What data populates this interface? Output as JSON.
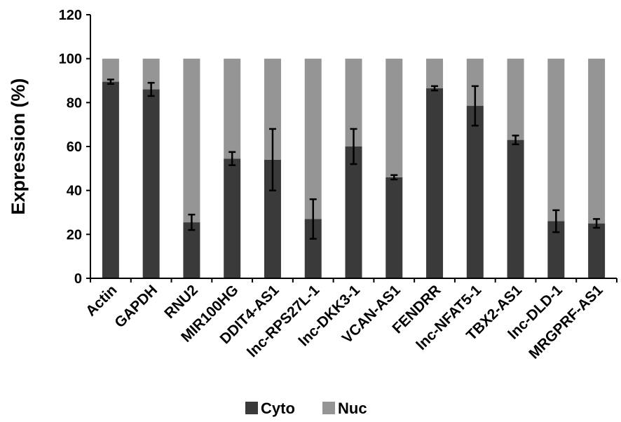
{
  "chart_data": {
    "type": "bar",
    "stacked": true,
    "title": "",
    "xlabel": "",
    "ylabel": "Expression (%)",
    "ylim": [
      0,
      120
    ],
    "yticks": [
      0,
      20,
      40,
      60,
      80,
      100,
      120
    ],
    "categories": [
      "Actin",
      "GAPDH",
      "RNU2",
      "MIR100HG",
      "DDIT4-AS1",
      "lnc-RPS27L-1",
      "lnc-DKK3-1",
      "VCAN-AS1",
      "FENDRR",
      "lnc-NFAT5-1",
      "TBX2-AS1",
      "lnc-DLD-1",
      "MRGPRF-AS1"
    ],
    "series": [
      {
        "name": "Cyto",
        "color": "#3a3a3a",
        "values": [
          89.5,
          86,
          25.5,
          54.5,
          54,
          27,
          60,
          46,
          86.5,
          78.5,
          63,
          26,
          25
        ],
        "error": [
          1,
          3,
          3.5,
          3,
          14,
          9,
          8,
          1,
          1,
          9,
          2,
          5,
          2
        ]
      },
      {
        "name": "Nuc",
        "color": "#959595",
        "values": [
          10.5,
          14,
          74.5,
          45.5,
          46,
          73,
          40,
          54,
          13.5,
          21.5,
          37,
          74,
          75
        ]
      }
    ],
    "legend_position": "bottom",
    "grid": false
  }
}
